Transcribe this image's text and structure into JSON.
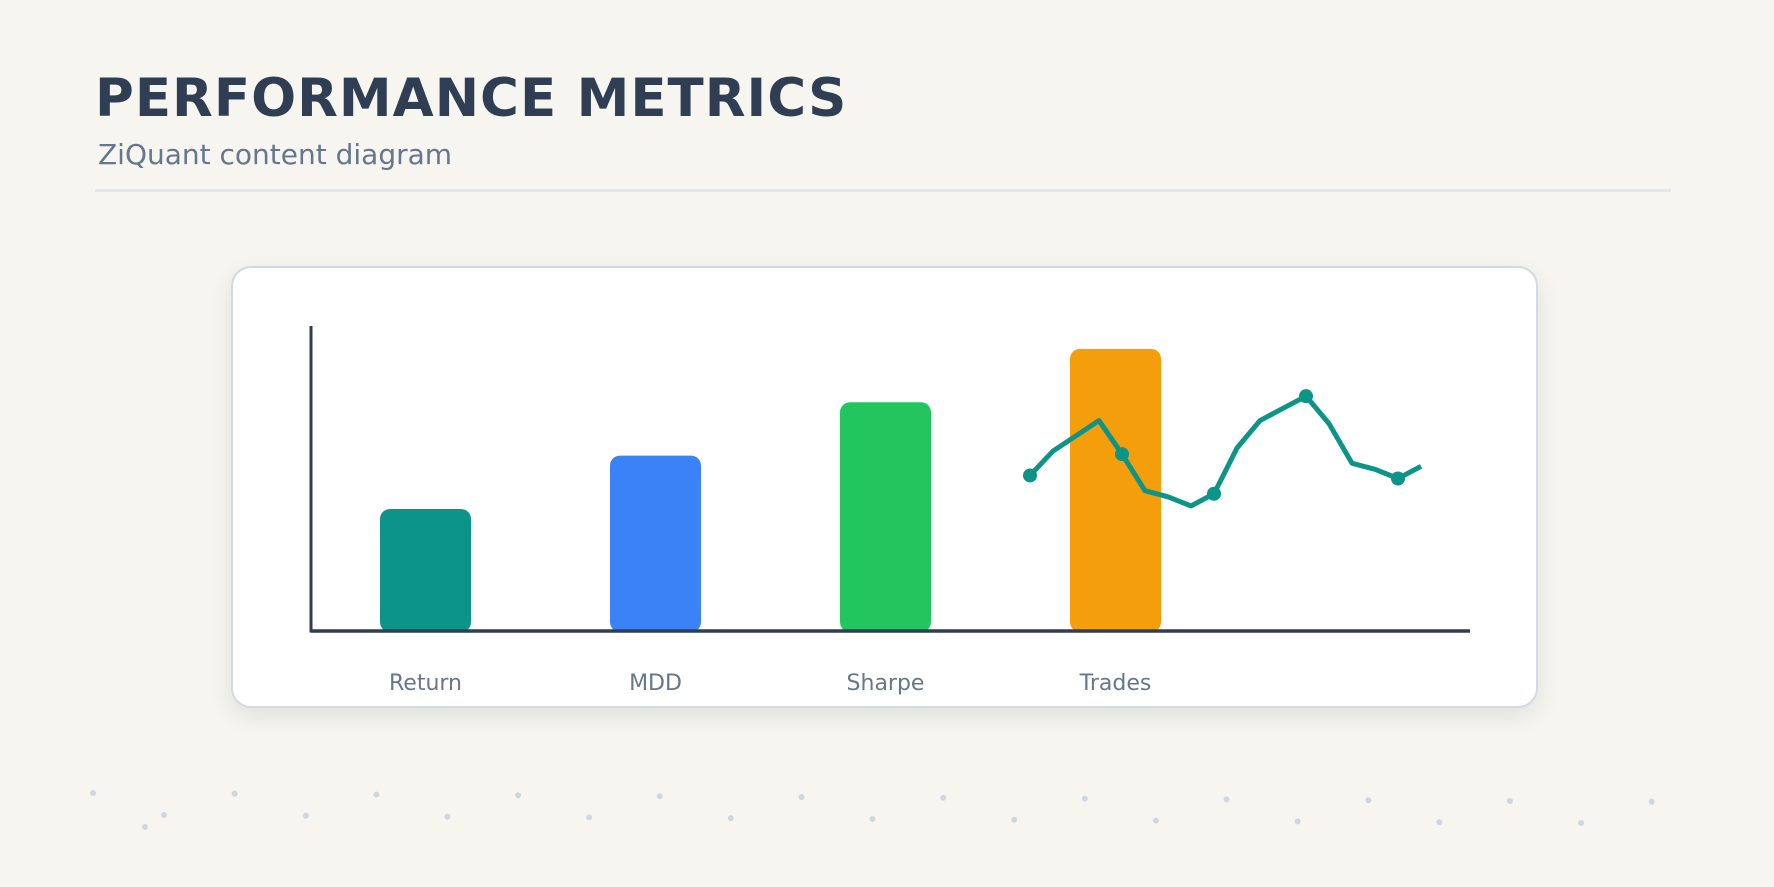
{
  "header": {
    "title": "PERFORMANCE METRICS",
    "subtitle": "ZiQuant content diagram"
  },
  "chart_data": {
    "type": "bar",
    "categories": [
      "Return",
      "MDD",
      "Sharpe",
      "Trades"
    ],
    "values": [
      4,
      5.75,
      7.5,
      9.25
    ],
    "ylim": [
      0,
      10
    ],
    "bar_colors": [
      "#0d9488",
      "#3b82f6",
      "#22c55e",
      "#f59e0b"
    ],
    "axis_color": "#2f3e53",
    "label_color": "#66768d",
    "overlay_line": {
      "type": "line",
      "color": "#0d9488",
      "values": [
        5.1,
        5.9,
        6.4,
        6.9,
        5.8,
        4.6,
        4.4,
        4.1,
        4.5,
        6.0,
        6.9,
        7.3,
        7.7,
        6.8,
        5.5,
        5.3,
        5.0,
        5.4
      ],
      "marker_indices": [
        0,
        4,
        8,
        12,
        16
      ]
    }
  },
  "decor": {
    "dot_color": "#cfd6e0"
  }
}
